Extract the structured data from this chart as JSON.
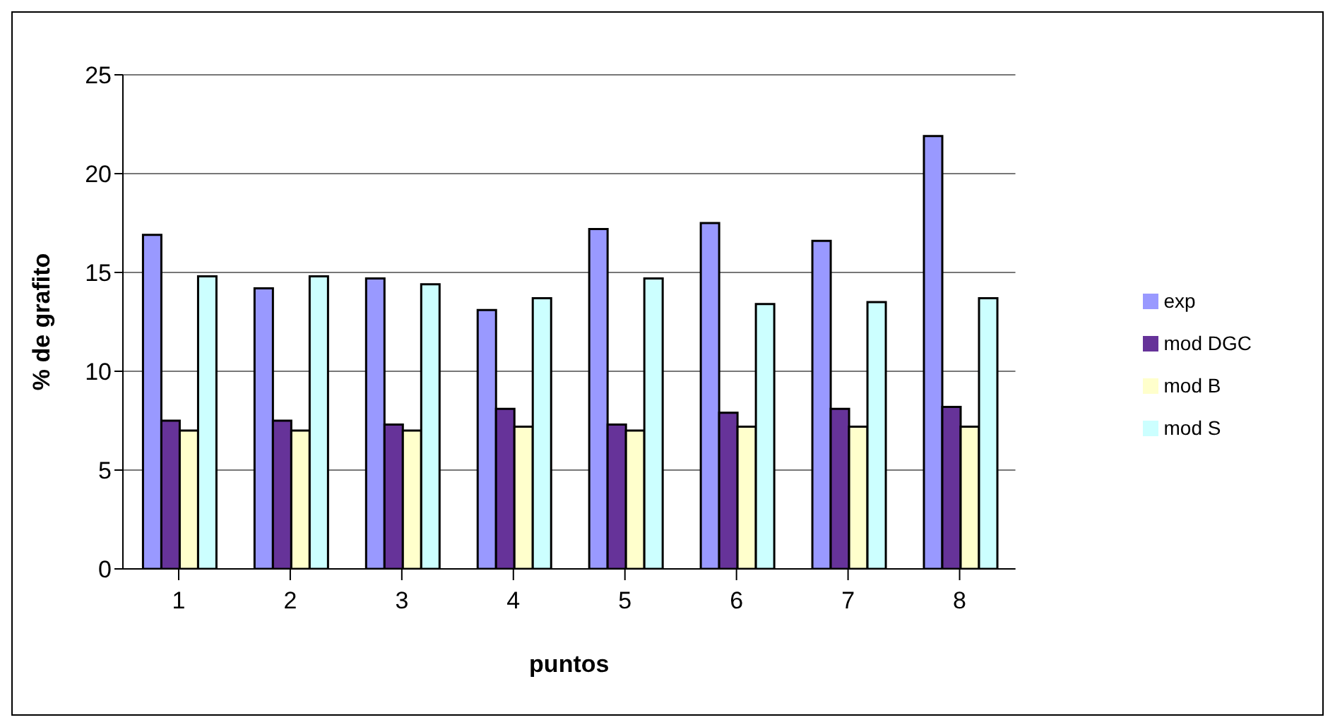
{
  "chart_data": {
    "type": "bar",
    "xlabel": "puntos",
    "ylabel": "% de grafito",
    "categories": [
      "1",
      "2",
      "3",
      "4",
      "5",
      "6",
      "7",
      "8"
    ],
    "series": [
      {
        "name": "exp",
        "color": "#9999ff",
        "values": [
          16.9,
          14.2,
          14.7,
          13.1,
          17.2,
          17.5,
          16.6,
          21.9
        ]
      },
      {
        "name": "mod DGC",
        "color": "#663399",
        "values": [
          7.5,
          7.5,
          7.3,
          8.1,
          7.3,
          7.9,
          8.1,
          8.2
        ]
      },
      {
        "name": "mod B",
        "color": "#ffffcc",
        "values": [
          7.0,
          7.0,
          7.0,
          7.2,
          7.0,
          7.2,
          7.2,
          7.2
        ]
      },
      {
        "name": "mod S",
        "color": "#ccffff",
        "values": [
          14.8,
          14.8,
          14.4,
          13.7,
          14.7,
          13.4,
          13.5,
          13.7
        ]
      }
    ],
    "ylim": [
      0,
      25
    ],
    "yticks": [
      0,
      5,
      10,
      15,
      20,
      25
    ],
    "grid": "y",
    "legend": "right"
  }
}
